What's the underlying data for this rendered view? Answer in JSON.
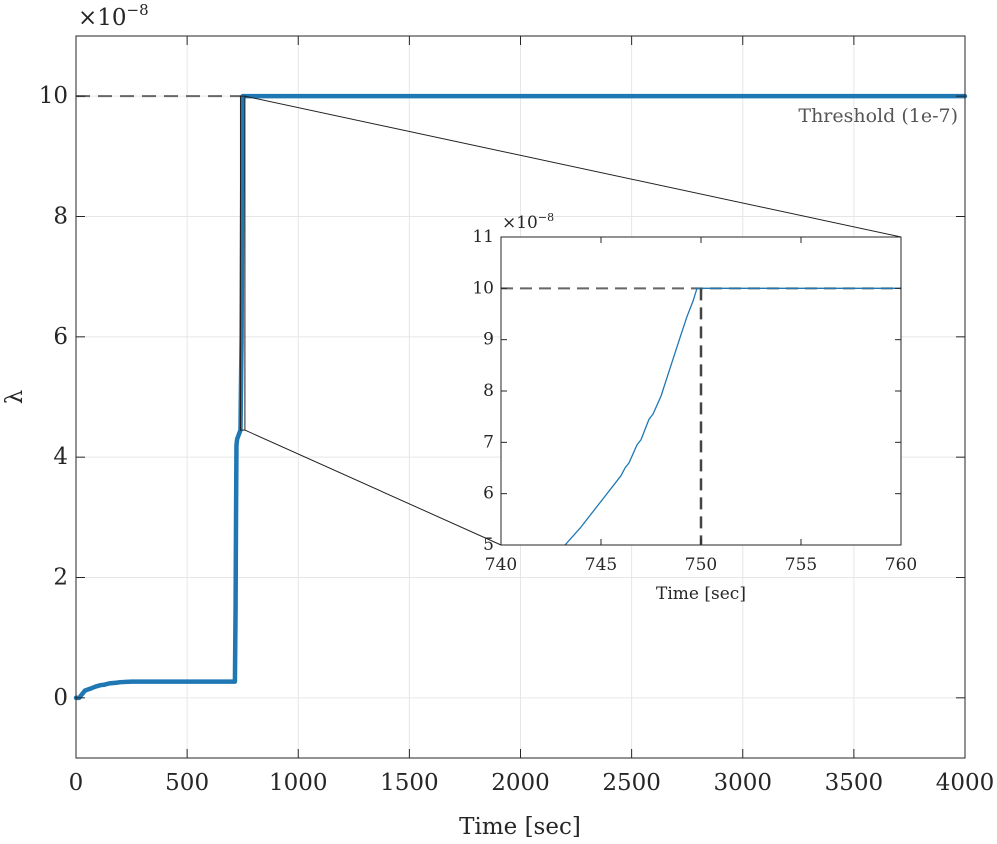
{
  "chart_data": [
    {
      "id": "main",
      "type": "line",
      "title": "",
      "xlabel": "Time [sec]",
      "ylabel": "λ",
      "xlim": [
        0,
        4000
      ],
      "ylim": [
        -1,
        11
      ],
      "y_multiplier": {
        "base": "×10",
        "exponent": "−8"
      },
      "xticks": [
        0,
        500,
        1000,
        1500,
        2000,
        2500,
        3000,
        3500,
        4000
      ],
      "xtick_labels": [
        "0",
        "500",
        "1000",
        "1500",
        "2000",
        "2500",
        "3000",
        "3500",
        "4000"
      ],
      "yticks": [
        0,
        2,
        4,
        6,
        8,
        10
      ],
      "ytick_labels": [
        "0",
        "2",
        "4",
        "6",
        "8",
        "10"
      ],
      "grid": true,
      "legend": "none",
      "series": [
        {
          "color": "#1f77b4",
          "x": [
            0,
            15,
            25,
            40,
            55,
            70,
            90,
            110,
            130,
            150,
            180,
            200,
            250,
            300,
            400,
            500,
            600,
            700,
            715,
            718,
            720,
            722,
            725,
            730,
            740,
            745,
            748,
            750,
            755,
            800,
            1000,
            2000,
            3000,
            4000
          ],
          "y": [
            0,
            0,
            0.05,
            0.12,
            0.14,
            0.16,
            0.19,
            0.21,
            0.22,
            0.24,
            0.25,
            0.26,
            0.27,
            0.27,
            0.27,
            0.27,
            0.27,
            0.27,
            0.27,
            1.5,
            3.0,
            4.2,
            4.3,
            4.35,
            4.45,
            6.0,
            8.5,
            10,
            10,
            10,
            10,
            10,
            10,
            10
          ]
        }
      ],
      "threshold": {
        "value": 10,
        "label": "Threshold (1e-7)",
        "color": "#666666"
      },
      "zoom_box": {
        "x": [
          740,
          760
        ],
        "y": [
          4.45,
          10
        ]
      }
    },
    {
      "id": "inset",
      "type": "line",
      "title": "",
      "xlabel": "Time [sec]",
      "ylabel": "",
      "xlim": [
        740,
        760
      ],
      "ylim": [
        5,
        11
      ],
      "y_multiplier": {
        "base": "×10",
        "exponent": "−8"
      },
      "xticks": [
        740,
        745,
        750,
        755,
        760
      ],
      "xtick_labels": [
        "740",
        "745",
        "750",
        "755",
        "760"
      ],
      "yticks": [
        5,
        6,
        7,
        8,
        9,
        10,
        11
      ],
      "ytick_labels": [
        "5",
        "6",
        "7",
        "8",
        "9",
        "10",
        "11"
      ],
      "grid": false,
      "legend": "none",
      "series": [
        {
          "color": "#1f77b4",
          "x": [
            743.2,
            744,
            745,
            746,
            746.2,
            746.4,
            746.8,
            747,
            747.4,
            747.6,
            748,
            748.5,
            749,
            749.3,
            749.6,
            749.8,
            750,
            752,
            755,
            760
          ],
          "y": [
            5.0,
            5.35,
            5.85,
            6.35,
            6.5,
            6.6,
            6.95,
            7.05,
            7.45,
            7.55,
            7.9,
            8.5,
            9.1,
            9.45,
            9.75,
            10.0,
            10.0,
            10.0,
            10.0,
            10.0
          ]
        }
      ],
      "threshold": {
        "value": 10,
        "color": "#666666"
      },
      "vline": {
        "value": 750,
        "color": "#444444"
      }
    }
  ]
}
